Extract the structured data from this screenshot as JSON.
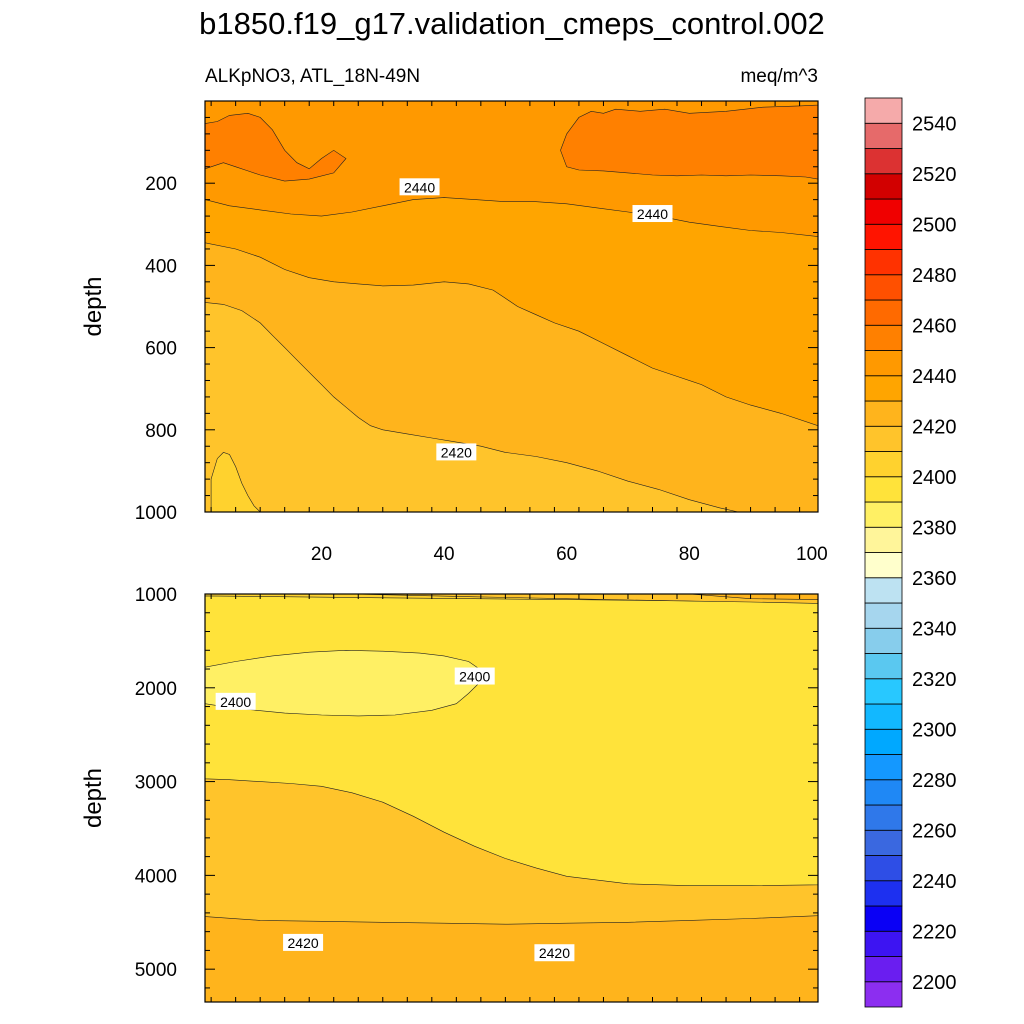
{
  "chart_data": {
    "type": "contour",
    "title": "b1850.f19_g17.validation_cmeps_control.002",
    "subtitle_left": "ALKpNO3, ATL_18N-49N",
    "units": "meq/m^3",
    "x_ticks": [
      "20",
      "40",
      "60",
      "80",
      "100"
    ],
    "panels": [
      {
        "name": "upper",
        "ylabel": "depth",
        "xlim": [
          1,
          101
        ],
        "ylim": [
          0,
          1000
        ],
        "y_ticks": [
          200,
          400,
          600,
          800,
          1000
        ],
        "y_tick_labels": [
          "200",
          "400",
          "600",
          "800",
          "1000"
        ],
        "contour_labels": [
          {
            "text": "2440",
            "x": 36,
            "y": 210
          },
          {
            "text": "2440",
            "x": 74,
            "y": 275
          },
          {
            "text": "2420",
            "x": 42,
            "y": 855
          }
        ],
        "regions": [
          {
            "value": 2455,
            "color": "#ff8000"
          },
          {
            "value": 2445,
            "color": "#ff9900"
          },
          {
            "value": 2435,
            "color": "#ffa500"
          },
          {
            "value": 2425,
            "color": "#ffb41c"
          },
          {
            "value": 2415,
            "color": "#ffc42b"
          },
          {
            "value": 2405,
            "color": "#ffd22e"
          },
          {
            "value": 2395,
            "color": "#ffe33a"
          }
        ]
      },
      {
        "name": "lower",
        "ylabel": "depth",
        "xlim": [
          1,
          101
        ],
        "ylim": [
          1000,
          5350
        ],
        "y_ticks": [
          1000,
          2000,
          3000,
          4000,
          5000
        ],
        "y_tick_labels": [
          "1000",
          "2000",
          "3000",
          "4000",
          "5000"
        ],
        "contour_labels": [
          {
            "text": "2400",
            "x": 45,
            "y": 1880
          },
          {
            "text": "2400",
            "x": 6,
            "y": 2150
          },
          {
            "text": "2420",
            "x": 17,
            "y": 4720
          },
          {
            "text": "2420",
            "x": 58,
            "y": 4830
          }
        ],
        "regions": [
          {
            "value": 2425,
            "color": "#ffb41c"
          },
          {
            "value": 2415,
            "color": "#ffc42b"
          },
          {
            "value": 2405,
            "color": "#ffd22e"
          },
          {
            "value": 2395,
            "color": "#ffe33a"
          },
          {
            "value": 2385,
            "color": "#fff064"
          }
        ]
      }
    ],
    "colorbar": {
      "levels": [
        2200,
        2210,
        2220,
        2230,
        2240,
        2250,
        2260,
        2270,
        2280,
        2290,
        2300,
        2310,
        2320,
        2330,
        2340,
        2350,
        2360,
        2370,
        2380,
        2390,
        2400,
        2410,
        2420,
        2430,
        2440,
        2450,
        2460,
        2470,
        2480,
        2490,
        2500,
        2510,
        2520,
        2530,
        2540,
        2550
      ],
      "labels": [
        "2200",
        "2220",
        "2240",
        "2260",
        "2280",
        "2300",
        "2320",
        "2340",
        "2360",
        "2380",
        "2400",
        "2420",
        "2440",
        "2460",
        "2480",
        "2500",
        "2520",
        "2540"
      ],
      "colors": [
        "#8c2ef0",
        "#6a1ef0",
        "#3d14f2",
        "#0a00f5",
        "#1d30f0",
        "#2e4ee6",
        "#3a68e0",
        "#2f78ea",
        "#1f88f5",
        "#1498ff",
        "#00a8ff",
        "#12b8ff",
        "#28c8ff",
        "#5ac8f0",
        "#87cdec",
        "#a6d6ee",
        "#bde2f2",
        "#ffffcc",
        "#fff59a",
        "#fff064",
        "#ffe33a",
        "#ffd22e",
        "#ffc42b",
        "#ffb41c",
        "#ffa500",
        "#ff9900",
        "#ff8000",
        "#ff6a00",
        "#ff5000",
        "#ff3200",
        "#ff1400",
        "#f00000",
        "#d20000",
        "#dc3232",
        "#e66a6a",
        "#f5aaaa"
      ]
    }
  }
}
